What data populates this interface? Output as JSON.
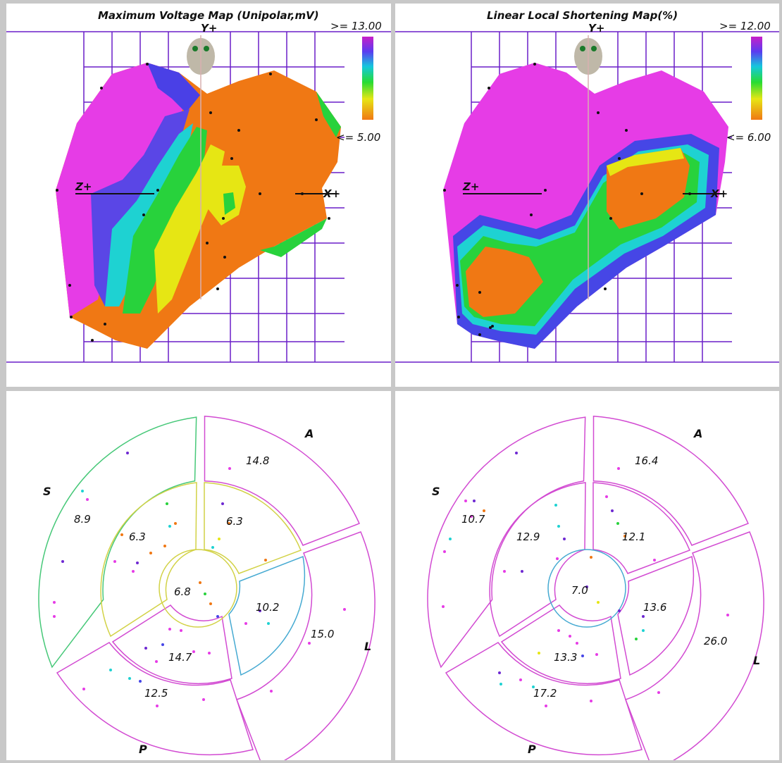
{
  "maps": [
    {
      "title": "Maximum Voltage Map (Unipolar,mV)",
      "scale_max": ">= 13.00",
      "scale_min": "<= 5.00",
      "axis_y": "Y+",
      "axis_z": "Z+",
      "axis_x": "X+"
    },
    {
      "title": "Linear Local Shortening Map(%)",
      "scale_max": ">= 12.00",
      "scale_min": "<= 6.00",
      "axis_y": "Y+",
      "axis_z": "Z+",
      "axis_x": "X+"
    }
  ],
  "bullseyes": [
    {
      "labels": {
        "A": "A",
        "S": "S",
        "L": "L",
        "P": "P"
      },
      "values": {
        "outer_anterior": "14.8",
        "outer_septal": "8.9",
        "outer_lateral": "15.0",
        "outer_posterior": "12.5",
        "inner_anterior": "6.3",
        "inner_septal": "6.3",
        "inner_lateral": "10.2",
        "inner_posterior": "14.7",
        "apex": "6.8"
      }
    },
    {
      "labels": {
        "A": "A",
        "S": "S",
        "L": "L",
        "P": "P"
      },
      "values": {
        "outer_anterior": "16.4",
        "outer_septal": "10.7",
        "outer_lateral": "26.0",
        "outer_posterior": "17.2",
        "inner_anterior": "12.1",
        "inner_septal": "12.9",
        "inner_lateral": "13.6",
        "inner_posterior": "13.3",
        "apex": "7.0"
      }
    }
  ],
  "colors": {
    "magenta": "#e63ce6",
    "purple": "#6e28d2",
    "blue": "#4646e6",
    "cyan": "#1ed2d2",
    "green": "#28d23c",
    "yellow": "#e6e614",
    "orange": "#f0780a",
    "grid": "#6a1fc8",
    "outline_magenta": "#d24bd2",
    "outline_green": "#46c878",
    "outline_yellow": "#d2d246",
    "outline_cyan": "#46aad2"
  }
}
